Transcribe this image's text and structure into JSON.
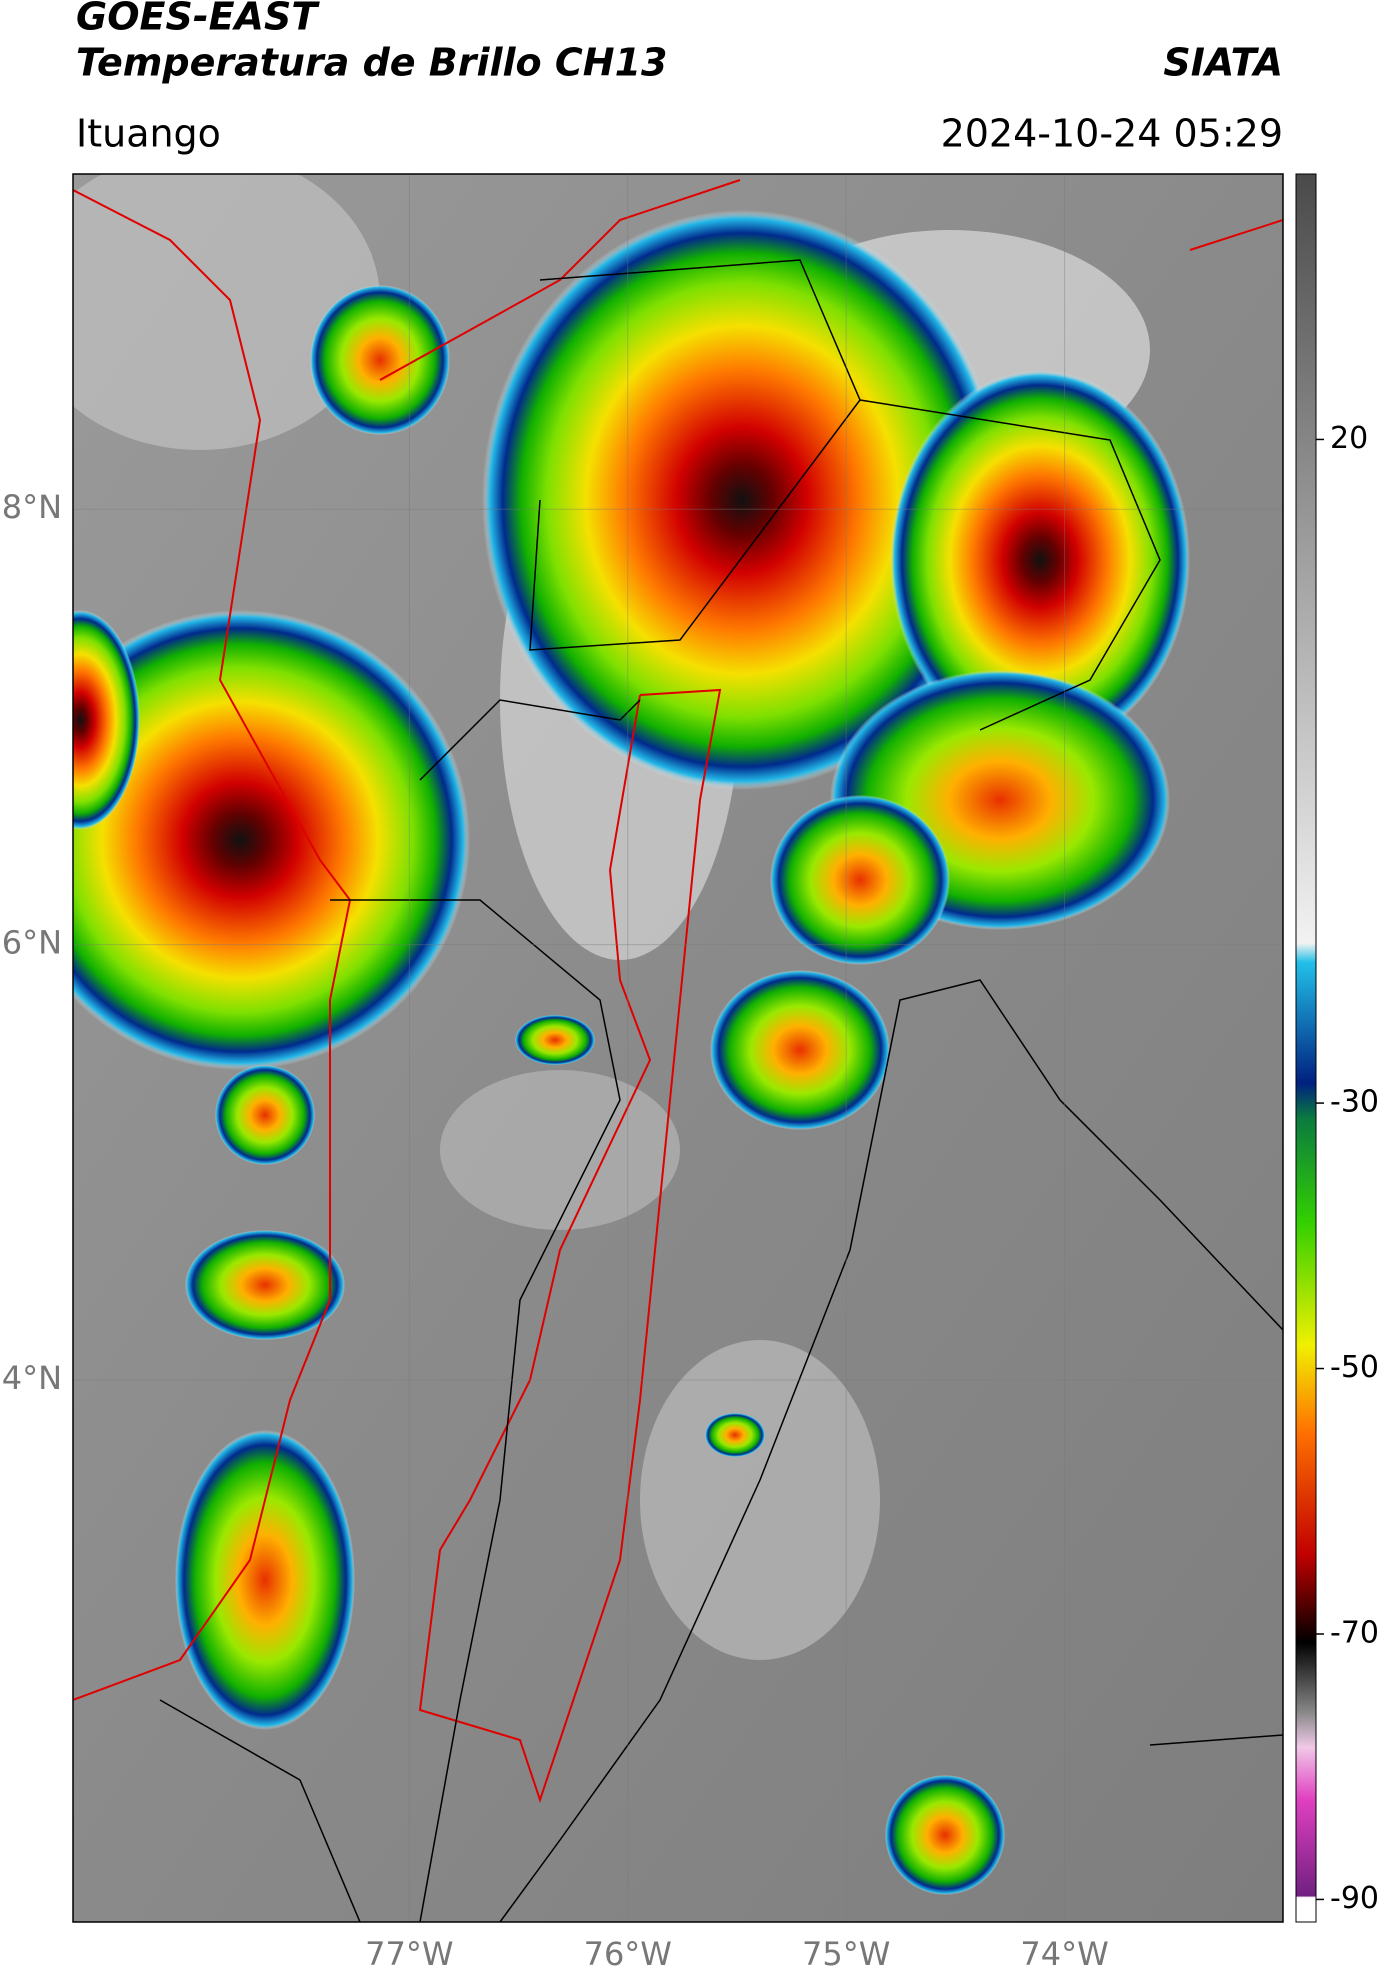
{
  "header": {
    "title": "GOES-EAST",
    "subtitle": "Temperatura de Brillo CH13",
    "source": "SIATA",
    "location": "Ituango",
    "datetime": "2024-10-24 05:29"
  },
  "map": {
    "xlim": [
      -78.54,
      -73.0
    ],
    "ylim": [
      1.51,
      9.54
    ],
    "xticks": [
      {
        "value": -77,
        "label": "77°W"
      },
      {
        "value": -76,
        "label": "76°W"
      },
      {
        "value": -75,
        "label": "75°W"
      },
      {
        "value": -74,
        "label": "74°W"
      }
    ],
    "yticks": [
      {
        "value": 8,
        "label": "8°N"
      },
      {
        "value": 6,
        "label": "6°N"
      },
      {
        "value": 4,
        "label": "4°N"
      }
    ]
  },
  "colorbar": {
    "lim": [
      -91.7,
      40
    ],
    "ticks": [
      20,
      -30,
      -50,
      -70,
      -90
    ]
  }
}
